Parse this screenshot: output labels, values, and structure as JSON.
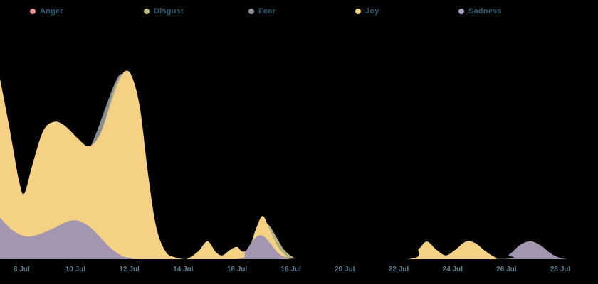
{
  "legend": {
    "items": [
      {
        "label": "Anger",
        "color": "#e8938c"
      },
      {
        "label": "Disgust",
        "color": "#c9c383"
      },
      {
        "label": "Fear",
        "color": "#8d9399"
      },
      {
        "label": "Joy",
        "color": "#f8d584"
      },
      {
        "label": "Sadness",
        "color": "#af9fc2"
      }
    ]
  },
  "axis": {
    "ticks": [
      {
        "label": "8 Jul",
        "day": 8
      },
      {
        "label": "10 Jul",
        "day": 10
      },
      {
        "label": "12 Jul",
        "day": 12
      },
      {
        "label": "14 Jul",
        "day": 14
      },
      {
        "label": "16 Jul",
        "day": 16
      },
      {
        "label": "18 Jul",
        "day": 18
      },
      {
        "label": "20 Jul",
        "day": 20
      },
      {
        "label": "22 Jul",
        "day": 22
      },
      {
        "label": "24 Jul",
        "day": 24
      },
      {
        "label": "26 Jul",
        "day": 26
      },
      {
        "label": "28 Jul",
        "day": 28
      }
    ]
  },
  "chart_data": {
    "type": "area",
    "title": "",
    "xlabel": "",
    "ylabel": "",
    "x_unit": "day of July",
    "x_domain": [
      7.2,
      29.4
    ],
    "y_domain": [
      0,
      1
    ],
    "grid": false,
    "legend_position": "top",
    "background": "#000000",
    "draw_order": [
      "Anger",
      "Fear",
      "Disgust",
      "Joy",
      "Sadness"
    ],
    "series": [
      {
        "name": "Anger",
        "color": "#e8938c",
        "points": [
          [
            7.2,
            0
          ],
          [
            29.4,
            0
          ]
        ]
      },
      {
        "name": "Fear",
        "color": "#878e93",
        "points": [
          [
            7.2,
            0.15
          ],
          [
            8.0,
            0.2
          ],
          [
            9.0,
            0.3
          ],
          [
            9.8,
            0.42
          ],
          [
            10.4,
            0.55
          ],
          [
            10.8,
            0.68
          ],
          [
            11.1,
            0.8
          ],
          [
            11.45,
            0.93
          ],
          [
            11.7,
            0.985
          ],
          [
            11.95,
            0.94
          ],
          [
            12.25,
            0.76
          ],
          [
            12.6,
            0.4
          ],
          [
            12.95,
            0.13
          ],
          [
            13.3,
            0.03
          ],
          [
            13.7,
            0
          ],
          [
            29.4,
            0
          ]
        ]
      },
      {
        "name": "Disgust",
        "color": "#b3b083",
        "points": [
          [
            7.2,
            0.1
          ],
          [
            8.5,
            0.15
          ],
          [
            9.5,
            0.3
          ],
          [
            10.4,
            0.5
          ],
          [
            10.9,
            0.62
          ],
          [
            11.3,
            0.84
          ],
          [
            11.65,
            0.97
          ],
          [
            11.95,
            0.95
          ],
          [
            12.3,
            0.72
          ],
          [
            12.65,
            0.38
          ],
          [
            13.0,
            0.14
          ],
          [
            13.35,
            0.03
          ],
          [
            13.8,
            0
          ],
          [
            16.1,
            0
          ],
          [
            16.5,
            0.08
          ],
          [
            16.85,
            0.18
          ],
          [
            17.15,
            0.185
          ],
          [
            17.45,
            0.12
          ],
          [
            17.75,
            0.05
          ],
          [
            18.1,
            0.01
          ],
          [
            18.5,
            0
          ],
          [
            29.4,
            0
          ]
        ]
      },
      {
        "name": "Joy",
        "color": "#f5d283",
        "points": [
          [
            7.2,
            0.96
          ],
          [
            7.55,
            0.7
          ],
          [
            7.9,
            0.42
          ],
          [
            8.1,
            0.35
          ],
          [
            8.4,
            0.5
          ],
          [
            8.8,
            0.68
          ],
          [
            9.2,
            0.73
          ],
          [
            9.6,
            0.71
          ],
          [
            10.1,
            0.64
          ],
          [
            10.5,
            0.6
          ],
          [
            10.9,
            0.66
          ],
          [
            11.3,
            0.82
          ],
          [
            11.6,
            0.94
          ],
          [
            11.85,
            1.0
          ],
          [
            12.1,
            0.97
          ],
          [
            12.4,
            0.8
          ],
          [
            12.7,
            0.45
          ],
          [
            13.0,
            0.17
          ],
          [
            13.35,
            0.04
          ],
          [
            13.7,
            0.01
          ],
          [
            14.1,
            0
          ],
          [
            14.55,
            0.04
          ],
          [
            14.9,
            0.095
          ],
          [
            15.2,
            0.04
          ],
          [
            15.45,
            0.02
          ],
          [
            15.75,
            0.05
          ],
          [
            16.0,
            0.065
          ],
          [
            16.2,
            0.04
          ],
          [
            16.45,
            0.06
          ],
          [
            16.7,
            0.16
          ],
          [
            16.95,
            0.23
          ],
          [
            17.2,
            0.16
          ],
          [
            17.5,
            0.07
          ],
          [
            17.8,
            0.02
          ],
          [
            18.2,
            0
          ],
          [
            22.3,
            0
          ],
          [
            22.75,
            0.055
          ],
          [
            23.05,
            0.094
          ],
          [
            23.4,
            0.05
          ],
          [
            23.75,
            0.02
          ],
          [
            24.1,
            0.05
          ],
          [
            24.5,
            0.094
          ],
          [
            24.85,
            0.085
          ],
          [
            25.2,
            0.045
          ],
          [
            25.6,
            0.01
          ],
          [
            26.0,
            0
          ],
          [
            29.4,
            0
          ]
        ]
      },
      {
        "name": "Sadness",
        "color": "#a496b0",
        "points": [
          [
            7.2,
            0.22
          ],
          [
            7.7,
            0.15
          ],
          [
            8.2,
            0.12
          ],
          [
            8.7,
            0.135
          ],
          [
            9.2,
            0.165
          ],
          [
            9.7,
            0.2
          ],
          [
            10.1,
            0.205
          ],
          [
            10.5,
            0.175
          ],
          [
            10.9,
            0.12
          ],
          [
            11.3,
            0.06
          ],
          [
            11.7,
            0.02
          ],
          [
            12.1,
            0.005
          ],
          [
            12.5,
            0
          ],
          [
            15.9,
            0
          ],
          [
            16.3,
            0.04
          ],
          [
            16.65,
            0.11
          ],
          [
            16.95,
            0.125
          ],
          [
            17.25,
            0.08
          ],
          [
            17.55,
            0.03
          ],
          [
            17.9,
            0.005
          ],
          [
            18.3,
            0
          ],
          [
            25.6,
            0
          ],
          [
            26.1,
            0.025
          ],
          [
            26.5,
            0.075
          ],
          [
            26.9,
            0.095
          ],
          [
            27.3,
            0.07
          ],
          [
            27.7,
            0.025
          ],
          [
            28.1,
            0.003
          ],
          [
            28.5,
            0
          ],
          [
            29.4,
            0
          ]
        ]
      }
    ]
  }
}
